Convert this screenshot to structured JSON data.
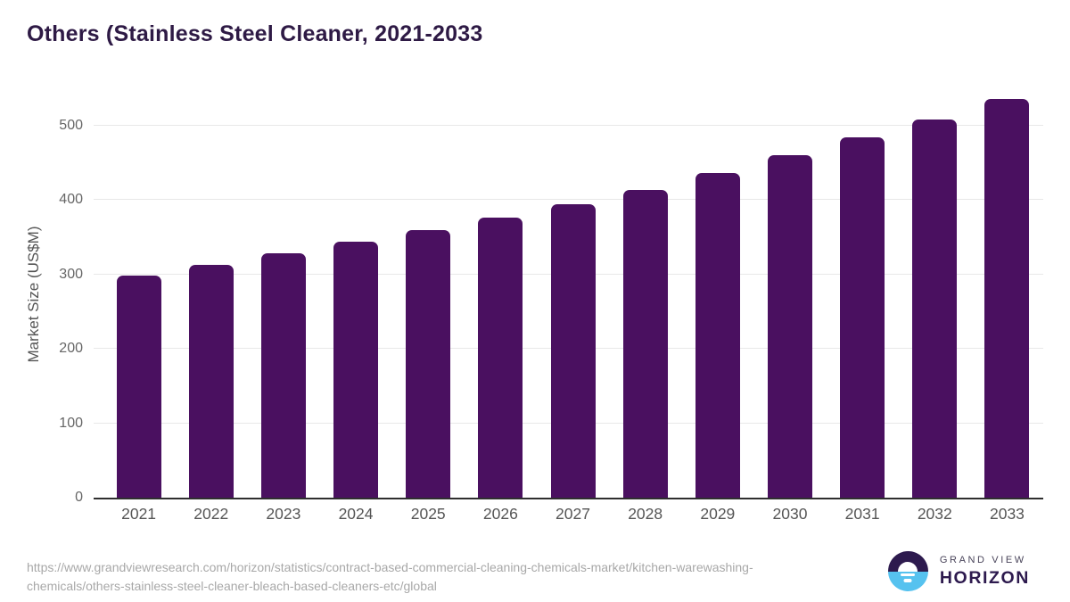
{
  "title": "Others (Stainless Steel Cleaner, 2021-2033",
  "chart_data": {
    "type": "bar",
    "title": "Others (Stainless Steel Cleaner, 2021-2033",
    "categories": [
      "2021",
      "2022",
      "2023",
      "2024",
      "2025",
      "2026",
      "2027",
      "2028",
      "2029",
      "2030",
      "2031",
      "2032",
      "2033"
    ],
    "values": [
      298,
      313,
      328,
      344,
      360,
      377,
      394,
      414,
      437,
      460,
      484,
      508,
      536
    ],
    "xlabel": "",
    "ylabel": "Market Size (US$M)",
    "ylim": [
      0,
      500
    ],
    "yticks": [
      0,
      100,
      200,
      300,
      400,
      500
    ],
    "bar_color": "#4a1060",
    "grid": "horizontal",
    "legend": "none"
  },
  "colors": {
    "bar": "#4a1060",
    "title_text": "#2e1a45",
    "axis_line": "#2f2f2f",
    "gridline": "#e8e8e8",
    "tick_text": "#666666",
    "logo_purple": "#2d1a4e",
    "logo_blue": "#56c2ef"
  },
  "footer": {
    "url_lines": [
      "https://www.grandviewresearch.com/horizon/statistics/contract-based-commercial-cleaning-chemicals-market/kitchen-warewashing-",
      "chemicals/others-stainless-steel-cleaner-bleach-based-cleaners-etc/global"
    ],
    "logo": {
      "line1": "GRAND VIEW",
      "line2": "HORIZON",
      "icon": "sunrise-horizon-icon"
    }
  }
}
